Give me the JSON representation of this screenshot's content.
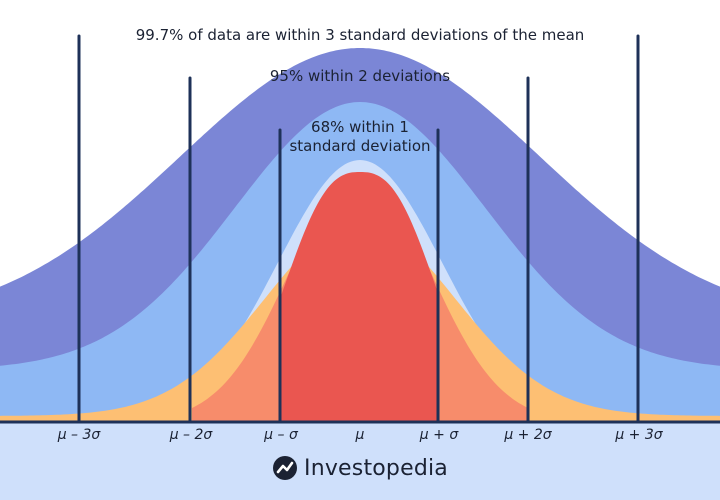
{
  "annotations": {
    "outer": "99.7% of data are within 3 standard deviations of the mean",
    "middle": "95% within 2 deviations",
    "inner_line1": "68% within 1",
    "inner_line2": "standard deviation"
  },
  "axis_labels": [
    "μ – 3σ",
    "μ – 2σ",
    "μ – σ",
    "μ",
    "μ + σ",
    "μ + 2σ",
    "μ + 3σ"
  ],
  "brand": {
    "name": "Investopedia",
    "icon": "investopedia-logo-icon"
  },
  "colors": {
    "band_3sd": "#7b86d6",
    "band_2sd": "#8eb8f4",
    "band_1sd": "#cfe0fb",
    "tail_outer": "#fdbf73",
    "tail_inner": "#f78c6b",
    "center": "#ea5650",
    "bottom_strip": "#cfe0fb",
    "lines": "#1e3158"
  }
}
